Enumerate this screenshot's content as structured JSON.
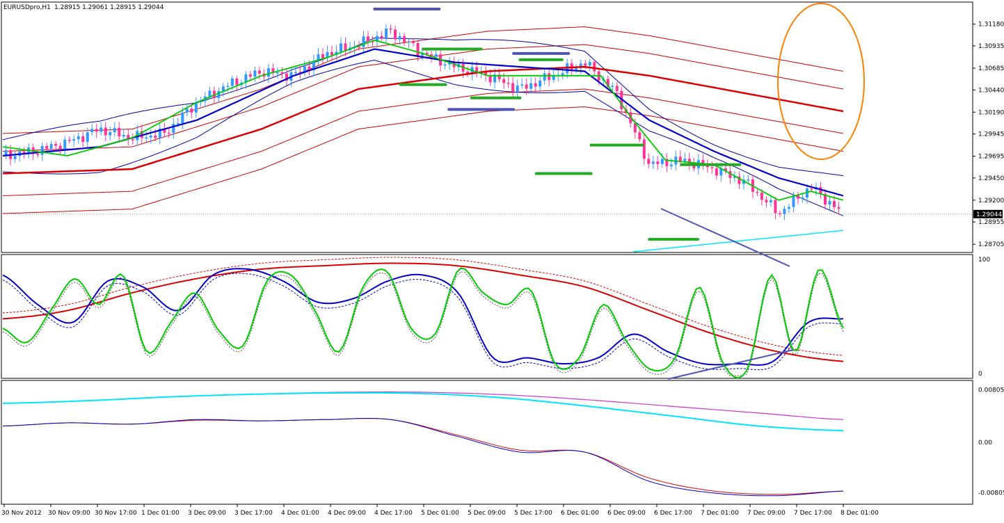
{
  "header": {
    "symbol": "EURUSDpro,H1",
    "ohlc": "1.28915 1.29061 1.28915 1.29044"
  },
  "colors": {
    "bull": "#3399ff",
    "bear": "#ff3399",
    "ma_fast": "#00cc00",
    "ma_mid": "#0000cc",
    "ma_slow": "#dd0000",
    "envelope": "#cc0000",
    "bands": "#0000aa",
    "cyan": "#00e5ff",
    "magenta": "#cc33cc",
    "hline_blue": "#4d55b8",
    "hline_green": "#22aa22",
    "ellipse": "#ff8000"
  },
  "chart_data": [
    {
      "type": "candlestick",
      "panel": "price",
      "title": "",
      "yticks": [
        "1.31180",
        "1.30935",
        "1.30685",
        "1.30440",
        "1.30190",
        "1.29945",
        "1.29695",
        "1.29450",
        "1.29200",
        "1.28955",
        "1.28705"
      ],
      "ylim": [
        1.2862,
        1.3142
      ],
      "current_price_label": "1.29044",
      "current_price": 1.29044,
      "xticks": [
        "30 Nov 2012",
        "30 Nov 09:00",
        "30 Nov 17:00",
        "1 Dec 01:00",
        "3 Dec 09:00",
        "3 Dec 17:00",
        "4 Dec 01:00",
        "4 Dec 09:00",
        "4 Dec 17:00",
        "5 Dec 01:00",
        "5 Dec 09:00",
        "5 Dec 17:00",
        "6 Dec 01:00",
        "6 Dec 09:00",
        "6 Dec 17:00",
        "7 Dec 01:00",
        "7 Dec 09:00",
        "7 Dec 17:00",
        "8 Dec 01:00"
      ],
      "close_path": [
        [
          0,
          1.297
        ],
        [
          10,
          1.2975
        ],
        [
          20,
          1.2985
        ],
        [
          30,
          1.3
        ],
        [
          40,
          1.299
        ],
        [
          50,
          1.2995
        ],
        [
          60,
          1.303
        ],
        [
          70,
          1.305
        ],
        [
          80,
          1.3065
        ],
        [
          90,
          1.306
        ],
        [
          100,
          1.3085
        ],
        [
          110,
          1.3095
        ],
        [
          120,
          1.311
        ],
        [
          130,
          1.3085
        ],
        [
          140,
          1.307
        ],
        [
          150,
          1.306
        ],
        [
          160,
          1.3045
        ],
        [
          170,
          1.306
        ],
        [
          180,
          1.3075
        ],
        [
          190,
          1.304
        ],
        [
          200,
          1.296
        ],
        [
          210,
          1.2965
        ],
        [
          220,
          1.2955
        ],
        [
          230,
          1.294
        ],
        [
          240,
          1.2905
        ],
        [
          250,
          1.2935
        ],
        [
          260,
          1.2904
        ]
      ],
      "series": [
        {
          "name": "",
          "role": "ma_fast",
          "points": [
            [
              0,
              1.298
            ],
            [
              20,
              1.297
            ],
            [
              40,
              1.299
            ],
            [
              60,
              1.303
            ],
            [
              80,
              1.306
            ],
            [
              100,
              1.308
            ],
            [
              115,
              1.31
            ],
            [
              130,
              1.3085
            ],
            [
              150,
              1.306
            ],
            [
              170,
              1.306
            ],
            [
              185,
              1.306
            ],
            [
              195,
              1.301
            ],
            [
              205,
              1.2965
            ],
            [
              220,
              1.296
            ],
            [
              230,
              1.294
            ],
            [
              240,
              1.292
            ],
            [
              250,
              1.293
            ],
            [
              260,
              1.292
            ]
          ]
        },
        {
          "name": "",
          "role": "ma_mid",
          "points": [
            [
              0,
              1.297
            ],
            [
              30,
              1.298
            ],
            [
              60,
              1.301
            ],
            [
              90,
              1.306
            ],
            [
              115,
              1.309
            ],
            [
              140,
              1.3075
            ],
            [
              180,
              1.3065
            ],
            [
              200,
              1.301
            ],
            [
              220,
              1.2975
            ],
            [
              240,
              1.2945
            ],
            [
              260,
              1.2925
            ]
          ]
        },
        {
          "name": "",
          "role": "ma_slow",
          "points": [
            [
              0,
              1.295
            ],
            [
              40,
              1.2955
            ],
            [
              80,
              1.3
            ],
            [
              110,
              1.3045
            ],
            [
              150,
              1.3065
            ],
            [
              180,
              1.307
            ],
            [
              200,
              1.306
            ],
            [
              230,
              1.304
            ],
            [
              260,
              1.302
            ]
          ]
        }
      ],
      "annotations": [
        {
          "type": "hline",
          "color": "blue",
          "y": 1.3135,
          "x": [
            115,
            135
          ]
        },
        {
          "type": "hline",
          "color": "green",
          "y": 1.309,
          "x": [
            130,
            148
          ]
        },
        {
          "type": "hline",
          "color": "green",
          "y": 1.305,
          "x": [
            123,
            137
          ]
        },
        {
          "type": "hline",
          "color": "blue",
          "y": 1.3022,
          "x": [
            138,
            158
          ]
        },
        {
          "type": "hline",
          "color": "green",
          "y": 1.3035,
          "x": [
            145,
            160
          ]
        },
        {
          "type": "hline",
          "color": "blue",
          "y": 1.3085,
          "x": [
            158,
            175
          ]
        },
        {
          "type": "hline",
          "color": "green",
          "y": 1.3078,
          "x": [
            160,
            173
          ]
        },
        {
          "type": "hline",
          "color": "green",
          "y": 1.295,
          "x": [
            165,
            182
          ]
        },
        {
          "type": "hline",
          "color": "green",
          "y": 1.2982,
          "x": [
            182,
            198
          ]
        },
        {
          "type": "hline",
          "color": "green",
          "y": 1.296,
          "x": [
            210,
            228
          ]
        },
        {
          "type": "hline",
          "color": "green",
          "y": 1.2876,
          "x": [
            200,
            215
          ]
        }
      ]
    },
    {
      "type": "line",
      "panel": "stochastic",
      "title": "",
      "ylim": [
        0,
        100
      ],
      "yticks": [
        "100",
        "0"
      ],
      "series": [
        {
          "name": "",
          "role": "green",
          "values": [
            40,
            28,
            55,
            82,
            60,
            85,
            20,
            45,
            70,
            38,
            25,
            80,
            85,
            55,
            20,
            75,
            88,
            40,
            35,
            90,
            70,
            60,
            72,
            10,
            15,
            60,
            28,
            5,
            15,
            75,
            10,
            5,
            85,
            20,
            90,
            40
          ]
        },
        {
          "name": "",
          "role": "blue",
          "values": [
            85,
            60,
            45,
            80,
            75,
            55,
            85,
            90,
            80,
            62,
            65,
            80,
            85,
            70,
            15,
            15,
            10,
            15,
            35,
            20,
            10,
            10,
            12,
            45,
            48
          ]
        },
        {
          "name": "",
          "role": "red",
          "values": [
            48,
            55,
            70,
            82,
            90,
            93,
            95,
            93,
            85,
            75,
            55,
            35,
            20,
            12
          ]
        }
      ]
    },
    {
      "type": "line",
      "panel": "oscillator",
      "title": "",
      "yticks": [
        "0.008051",
        "0.00",
        "-0.00805"
      ],
      "ylim": [
        -0.0092,
        0.0092
      ],
      "series": [
        {
          "name": "",
          "role": "cyan",
          "values": [
            0.006,
            0.0064,
            0.007,
            0.0074,
            0.0076,
            0.0075,
            0.0068,
            0.0055,
            0.004,
            0.0025,
            0.0018
          ]
        },
        {
          "name": "",
          "role": "magenta",
          "values": [
            0.006,
            0.0064,
            0.007,
            0.0074,
            0.0077,
            0.0077,
            0.0073,
            0.0065,
            0.0055,
            0.0045,
            0.0035
          ]
        },
        {
          "name": "",
          "role": "blue",
          "values": [
            0.0025,
            0.003,
            0.0028,
            0.0035,
            0.0033,
            0.0035,
            0.0035,
            0.001,
            -0.0015,
            -0.0015,
            -0.006,
            -0.0078,
            -0.0082,
            -0.0075
          ]
        },
        {
          "name": "",
          "role": "red",
          "values": [
            0.0025,
            0.003,
            0.0028,
            0.0034,
            0.0033,
            0.0035,
            0.0035,
            0.0012,
            -0.0012,
            -0.0015,
            -0.0055,
            -0.0075,
            -0.008,
            -0.0075
          ]
        }
      ]
    }
  ]
}
